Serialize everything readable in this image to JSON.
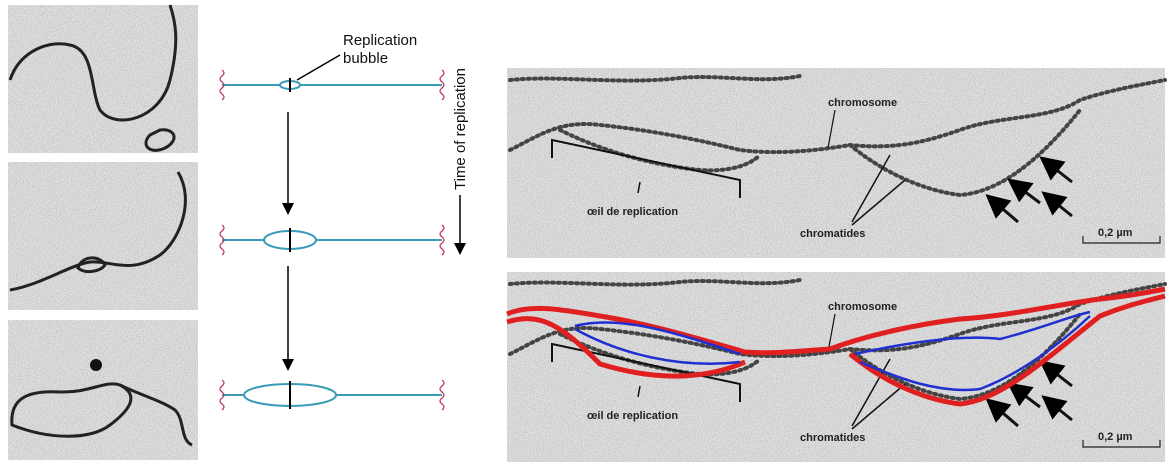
{
  "diagram": {
    "bubble_label": [
      "Replication",
      "bubble"
    ],
    "time_axis_label": "Time of replication"
  },
  "em_panels": [
    {
      "chromosome": "chromosome",
      "eye": "œil de replication",
      "chromatides": "chromatides",
      "scale": "0,2 µm"
    },
    {
      "chromosome": "chromosome",
      "eye": "œil de replication",
      "chromatides": "chromatides",
      "scale": "0,2 µm"
    }
  ]
}
